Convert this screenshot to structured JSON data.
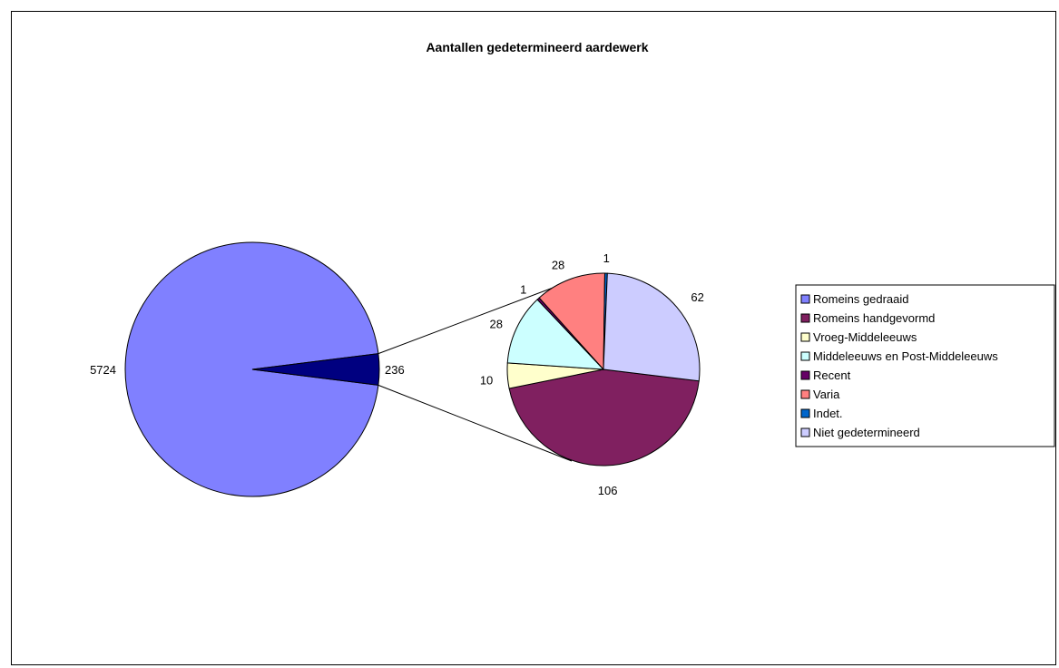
{
  "chart_data": {
    "type": "bar-of-pie",
    "title": "Aantallen gedetermineerd aardewerk",
    "main_pie": {
      "slices": [
        {
          "label": "5724",
          "value": 5724,
          "color": "#8080ff"
        },
        {
          "label": "236",
          "value": 236,
          "color": "#000080"
        }
      ]
    },
    "secondary_pie": {
      "slices": [
        {
          "name": "Romeins handgevormd",
          "label": "106",
          "value": 106,
          "color": "#802060"
        },
        {
          "name": "Vroeg-Middeleeuws",
          "label": "10",
          "value": 10,
          "color": "#ffffcc"
        },
        {
          "name": "Middeleeuws en Post-Middeleeuws",
          "label": "28",
          "value": 28,
          "color": "#ccffff"
        },
        {
          "name": "Recent",
          "label": "1",
          "value": 1,
          "color": "#660066"
        },
        {
          "name": "Varia",
          "label": "28",
          "value": 28,
          "color": "#ff8080"
        },
        {
          "name": "Indet.",
          "label": "1",
          "value": 1,
          "color": "#0066cc"
        },
        {
          "name": "Niet gedetermineerd",
          "label": "62",
          "value": 62,
          "color": "#ccccff"
        }
      ]
    },
    "legend": {
      "placement": "right",
      "entries": [
        {
          "name": "Romeins gedraaid",
          "color": "#8080ff"
        },
        {
          "name": "Romeins handgevormd",
          "color": "#802060"
        },
        {
          "name": "Vroeg-Middeleeuws",
          "color": "#ffffcc"
        },
        {
          "name": "Middeleeuws en Post-Middeleeuws",
          "color": "#ccffff"
        },
        {
          "name": "Recent",
          "color": "#660066"
        },
        {
          "name": "Varia",
          "color": "#ff8080"
        },
        {
          "name": "Indet.",
          "color": "#0066cc"
        },
        {
          "name": "Niet gedetermineerd",
          "color": "#ccccff"
        }
      ]
    }
  }
}
